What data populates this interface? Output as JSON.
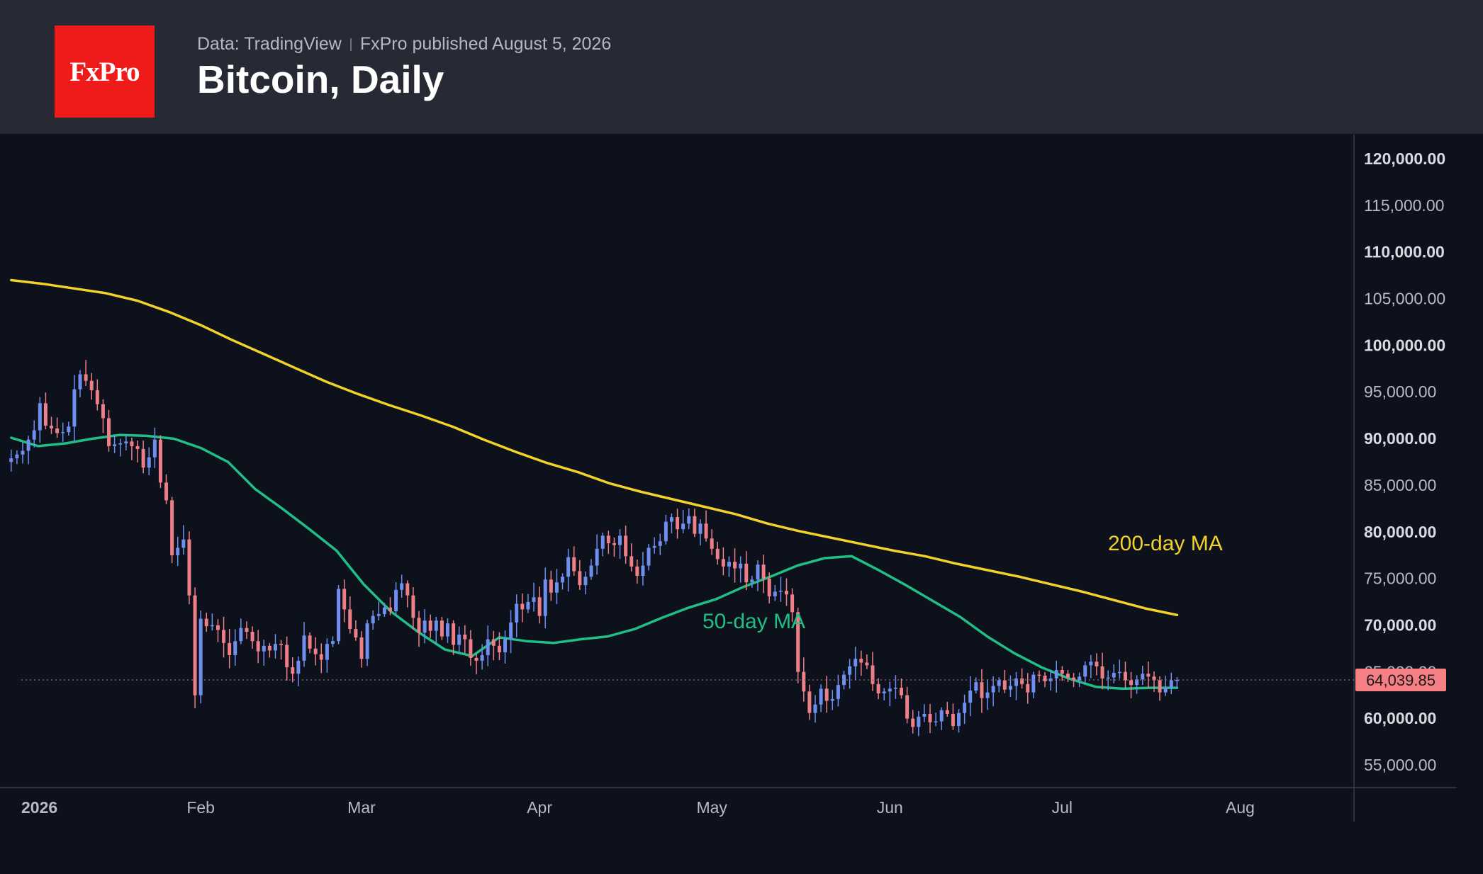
{
  "header": {
    "logo_text": "FxPro",
    "source": "Data: TradingView",
    "publisher": "FxPro published August 5, 2026",
    "title": "Bitcoin, Daily"
  },
  "colors": {
    "background": "#0c111c",
    "header_background": "#272a35",
    "logo_red": "#ef1a1a",
    "up_candle": "#6e8ff0",
    "down_candle": "#ef7f86",
    "ma200": "#f2d22a",
    "ma50": "#1fbf86",
    "last_price_tag": "#f57f84"
  },
  "chart_data": {
    "type": "candlestick",
    "symbol": "Bitcoin",
    "timeframe": "Daily",
    "y_ticks": [
      120000,
      115000,
      110000,
      105000,
      100000,
      95000,
      90000,
      85000,
      80000,
      75000,
      70000,
      65000,
      60000,
      55000
    ],
    "y_tick_labels": [
      "120,000.00",
      "115,000.00",
      "110,000.00",
      "105,000.00",
      "100,000.00",
      "95,000.00",
      "90,000.00",
      "85,000.00",
      "80,000.00",
      "75,000.00",
      "70,000.00",
      "65,000.00",
      "60,000.00",
      "55,000.00"
    ],
    "y_tick_bold": [
      true,
      false,
      true,
      false,
      true,
      false,
      true,
      false,
      true,
      false,
      true,
      false,
      true,
      false
    ],
    "ylim": [
      52500,
      122500
    ],
    "x_ticks": [
      {
        "label": "2026",
        "date": "2026-01-01"
      },
      {
        "label": "Feb",
        "date": "2026-02-01"
      },
      {
        "label": "Mar",
        "date": "2026-03-01"
      },
      {
        "label": "Apr",
        "date": "2026-04-01"
      },
      {
        "label": "May",
        "date": "2026-05-01"
      },
      {
        "label": "Jun",
        "date": "2026-06-01"
      },
      {
        "label": "Jul",
        "date": "2026-07-01"
      },
      {
        "label": "Aug",
        "date": "2026-08-01"
      }
    ],
    "last_price": 64039.85,
    "last_price_label": "64,039.85",
    "annotations": [
      {
        "text": "200-day MA",
        "series": "ma200"
      },
      {
        "text": "50-day MA",
        "series": "ma50"
      }
    ],
    "closes": {
      "start_date": "2025-12-30",
      "values": [
        87800,
        88200,
        88600,
        89800,
        90800,
        93700,
        91300,
        91000,
        90500,
        90600,
        91200,
        95200,
        96800,
        96100,
        95100,
        93600,
        92100,
        89100,
        89300,
        89400,
        89600,
        89100,
        88800,
        86800,
        87900,
        89800,
        85200,
        83300,
        77400,
        78200,
        79100,
        73100,
        62400,
        70600,
        69800,
        69900,
        69400,
        68000,
        66700,
        68200,
        69600,
        69200,
        68200,
        67100,
        67700,
        67200,
        67900,
        67800,
        65400,
        64700,
        66100,
        68800,
        67400,
        66800,
        66200,
        67900,
        68200,
        73800,
        71600,
        69500,
        68600,
        66300,
        70100,
        70900,
        71100,
        71800,
        71400,
        73700,
        74400,
        73100,
        70700,
        69100,
        70400,
        69300,
        70400,
        68700,
        70100,
        67800,
        68900,
        68400,
        66400,
        66100,
        66700,
        68400,
        67700,
        67000,
        68400,
        70200,
        72200,
        71600,
        72400,
        72900,
        70900,
        74800,
        73400,
        74500,
        75100,
        77200,
        75700,
        74200,
        75100,
        76300,
        78100,
        79500,
        78700,
        78500,
        79500,
        77300,
        76200,
        75200,
        76300,
        78200,
        78400,
        78900,
        81000,
        81500,
        80200,
        80800,
        81600,
        79700,
        80800,
        79200,
        78100,
        77000,
        76200,
        76700,
        76000,
        76500,
        74500,
        74800,
        76400,
        74900,
        73000,
        73500,
        73600,
        73200,
        71300,
        64900,
        62800,
        60500,
        61400,
        63100,
        61800,
        62000,
        63500,
        64600,
        65500,
        66300,
        65900,
        65600,
        63600,
        62600,
        62800,
        63100,
        63200,
        62400,
        59900,
        59000,
        60100,
        60400,
        59500,
        59600,
        60800,
        60400,
        59100,
        60500,
        61600,
        62900,
        63800,
        62100,
        62700,
        63400,
        64000,
        63000,
        63400,
        64200,
        63600,
        62700,
        64600,
        64500,
        63900,
        64200,
        65100,
        64700,
        64300,
        64000,
        64400,
        65600,
        66000,
        65500,
        64200,
        64300,
        64800,
        64900,
        64000,
        63500,
        64100,
        64700,
        64400,
        64000,
        62700,
        63200,
        64000,
        64039.85
      ]
    },
    "series": [
      {
        "key": "ma200",
        "name": "200-day MA",
        "values": [
          106900,
          106500,
          106000,
          105500,
          104700,
          103500,
          102100,
          100500,
          99000,
          97500,
          96000,
          94700,
          93500,
          92400,
          91200,
          89800,
          88500,
          87300,
          86300,
          85100,
          84200,
          83400,
          82600,
          81800,
          80800,
          80000,
          79300,
          78600,
          77900,
          77300,
          76500,
          75800,
          75100,
          74300,
          73500,
          72600,
          71700,
          71000
        ]
      },
      {
        "key": "ma50",
        "name": "50-day MA",
        "values": [
          90000,
          89100,
          89400,
          89900,
          90300,
          90200,
          89900,
          88900,
          87400,
          84500,
          82400,
          80200,
          77900,
          74300,
          71400,
          69200,
          67300,
          66600,
          68600,
          68200,
          68000,
          68400,
          68700,
          69500,
          70700,
          71800,
          72700,
          74000,
          75100,
          76300,
          77100,
          77300,
          75800,
          74200,
          72500,
          70800,
          68700,
          66900,
          65400,
          64200,
          63300,
          63100,
          63200,
          63200
        ]
      }
    ]
  }
}
